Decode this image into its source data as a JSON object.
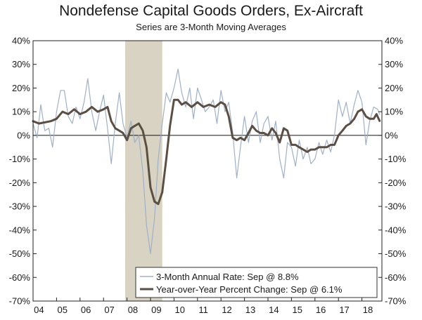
{
  "chart_data": {
    "type": "line",
    "title": "Nondefense Capital Goods Orders, Ex-Aircraft",
    "subtitle": "Series are 3-Month Moving Averages",
    "ylim": [
      -70,
      40
    ],
    "yticks": [
      "40%",
      "30%",
      "20%",
      "10%",
      "0%",
      "-10%",
      "-20%",
      "-30%",
      "-40%",
      "-50%",
      "-60%",
      "-70%"
    ],
    "xlim": [
      2004.0,
      2018.85
    ],
    "xticks": [
      "04",
      "05",
      "06",
      "07",
      "08",
      "09",
      "10",
      "11",
      "12",
      "13",
      "14",
      "15",
      "16",
      "17",
      "18"
    ],
    "recession_shade": {
      "start": 2007.92,
      "end": 2009.5,
      "color": "#d8d3c3"
    },
    "grid": false,
    "legend": "bottom-right",
    "series": [
      {
        "name": "3-Month Annual Rate: Sep @ 8.8%",
        "color": "#9fb0c9",
        "width": 1.2,
        "points": [
          [
            2004.0,
            5
          ],
          [
            2004.17,
            -1
          ],
          [
            2004.33,
            13
          ],
          [
            2004.5,
            2
          ],
          [
            2004.67,
            3
          ],
          [
            2004.83,
            -5
          ],
          [
            2005.0,
            10
          ],
          [
            2005.17,
            19
          ],
          [
            2005.33,
            19
          ],
          [
            2005.5,
            8
          ],
          [
            2005.67,
            5
          ],
          [
            2005.83,
            12
          ],
          [
            2006.0,
            7
          ],
          [
            2006.17,
            14
          ],
          [
            2006.33,
            24
          ],
          [
            2006.5,
            10
          ],
          [
            2006.67,
            2
          ],
          [
            2006.83,
            10
          ],
          [
            2007.0,
            17
          ],
          [
            2007.17,
            3
          ],
          [
            2007.33,
            -12
          ],
          [
            2007.5,
            5
          ],
          [
            2007.67,
            18
          ],
          [
            2007.83,
            5
          ],
          [
            2008.0,
            -1
          ],
          [
            2008.17,
            6
          ],
          [
            2008.33,
            -3
          ],
          [
            2008.5,
            0
          ],
          [
            2008.67,
            -15
          ],
          [
            2008.83,
            -38
          ],
          [
            2009.0,
            -50
          ],
          [
            2009.17,
            -35
          ],
          [
            2009.33,
            -10
          ],
          [
            2009.5,
            5
          ],
          [
            2009.67,
            18
          ],
          [
            2009.83,
            14
          ],
          [
            2010.0,
            20
          ],
          [
            2010.17,
            28
          ],
          [
            2010.33,
            18
          ],
          [
            2010.5,
            12
          ],
          [
            2010.67,
            20
          ],
          [
            2010.83,
            7
          ],
          [
            2011.0,
            20
          ],
          [
            2011.17,
            15
          ],
          [
            2011.33,
            10
          ],
          [
            2011.5,
            12
          ],
          [
            2011.67,
            15
          ],
          [
            2011.83,
            5
          ],
          [
            2012.0,
            19
          ],
          [
            2012.17,
            10
          ],
          [
            2012.33,
            14
          ],
          [
            2012.5,
            1
          ],
          [
            2012.67,
            -18
          ],
          [
            2012.83,
            -5
          ],
          [
            2013.0,
            8
          ],
          [
            2013.17,
            -3
          ],
          [
            2013.33,
            6
          ],
          [
            2013.5,
            10
          ],
          [
            2013.67,
            -3
          ],
          [
            2013.83,
            5
          ],
          [
            2014.0,
            8
          ],
          [
            2014.17,
            -2
          ],
          [
            2014.33,
            6
          ],
          [
            2014.5,
            -10
          ],
          [
            2014.67,
            -18
          ],
          [
            2014.83,
            -3
          ],
          [
            2015.0,
            -5
          ],
          [
            2015.17,
            -13
          ],
          [
            2015.33,
            -2
          ],
          [
            2015.5,
            -10
          ],
          [
            2015.67,
            -5
          ],
          [
            2015.83,
            -12
          ],
          [
            2016.0,
            -10
          ],
          [
            2016.17,
            -3
          ],
          [
            2016.33,
            -8
          ],
          [
            2016.5,
            -2
          ],
          [
            2016.67,
            -7
          ],
          [
            2016.83,
            0
          ],
          [
            2017.0,
            15
          ],
          [
            2017.17,
            8
          ],
          [
            2017.33,
            14
          ],
          [
            2017.5,
            5
          ],
          [
            2017.67,
            13
          ],
          [
            2017.83,
            19
          ],
          [
            2018.0,
            14
          ],
          [
            2018.17,
            -4
          ],
          [
            2018.33,
            6
          ],
          [
            2018.5,
            12
          ],
          [
            2018.67,
            11
          ],
          [
            2018.75,
            8.8
          ]
        ]
      },
      {
        "name": "Year-over-Year Percent Change: Sep @ 6.1%",
        "color": "#5b4e42",
        "width": 3,
        "points": [
          [
            2004.0,
            6
          ],
          [
            2004.25,
            5
          ],
          [
            2004.5,
            5.5
          ],
          [
            2004.75,
            6
          ],
          [
            2005.0,
            7
          ],
          [
            2005.25,
            10
          ],
          [
            2005.5,
            9
          ],
          [
            2005.75,
            11
          ],
          [
            2006.0,
            9
          ],
          [
            2006.25,
            10
          ],
          [
            2006.5,
            12
          ],
          [
            2006.75,
            10
          ],
          [
            2007.0,
            11
          ],
          [
            2007.17,
            12
          ],
          [
            2007.33,
            6
          ],
          [
            2007.5,
            3
          ],
          [
            2007.67,
            2
          ],
          [
            2007.83,
            1
          ],
          [
            2008.0,
            -2
          ],
          [
            2008.17,
            3
          ],
          [
            2008.33,
            4
          ],
          [
            2008.5,
            5
          ],
          [
            2008.67,
            2
          ],
          [
            2008.83,
            -5
          ],
          [
            2009.0,
            -22
          ],
          [
            2009.17,
            -28
          ],
          [
            2009.33,
            -29
          ],
          [
            2009.5,
            -24
          ],
          [
            2009.67,
            -10
          ],
          [
            2009.83,
            4
          ],
          [
            2010.0,
            15
          ],
          [
            2010.17,
            15
          ],
          [
            2010.33,
            13
          ],
          [
            2010.5,
            14
          ],
          [
            2010.75,
            12
          ],
          [
            2011.0,
            14
          ],
          [
            2011.25,
            12
          ],
          [
            2011.5,
            13
          ],
          [
            2011.75,
            12
          ],
          [
            2012.0,
            14
          ],
          [
            2012.17,
            13
          ],
          [
            2012.33,
            8
          ],
          [
            2012.5,
            -1
          ],
          [
            2012.67,
            -2
          ],
          [
            2012.83,
            -1
          ],
          [
            2013.0,
            -2
          ],
          [
            2013.17,
            1
          ],
          [
            2013.33,
            4
          ],
          [
            2013.5,
            2
          ],
          [
            2013.67,
            1
          ],
          [
            2013.83,
            1
          ],
          [
            2014.0,
            0
          ],
          [
            2014.17,
            3
          ],
          [
            2014.33,
            1
          ],
          [
            2014.5,
            -3
          ],
          [
            2014.67,
            3
          ],
          [
            2014.83,
            2
          ],
          [
            2015.0,
            -4
          ],
          [
            2015.17,
            -4
          ],
          [
            2015.33,
            -5
          ],
          [
            2015.5,
            -6
          ],
          [
            2015.67,
            -7
          ],
          [
            2015.83,
            -6
          ],
          [
            2016.0,
            -6
          ],
          [
            2016.17,
            -5
          ],
          [
            2016.33,
            -5
          ],
          [
            2016.5,
            -5
          ],
          [
            2016.67,
            -4
          ],
          [
            2016.83,
            -4
          ],
          [
            2017.0,
            0
          ],
          [
            2017.17,
            2
          ],
          [
            2017.33,
            4
          ],
          [
            2017.5,
            5
          ],
          [
            2017.67,
            7
          ],
          [
            2017.83,
            10
          ],
          [
            2018.0,
            11
          ],
          [
            2018.17,
            8
          ],
          [
            2018.33,
            7
          ],
          [
            2018.5,
            7
          ],
          [
            2018.62,
            9
          ],
          [
            2018.75,
            6.1
          ]
        ]
      }
    ]
  }
}
